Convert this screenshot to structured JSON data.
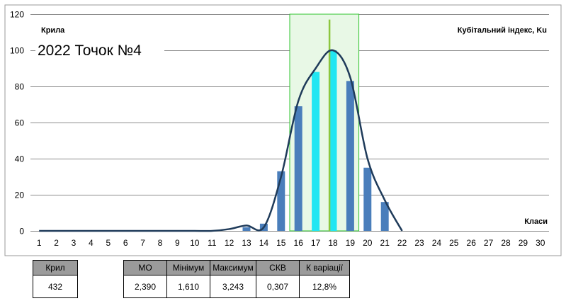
{
  "chart_data": {
    "type": "bar",
    "left_label": "Крила",
    "right_label": "Кубітальний  індекс, Ku",
    "subtitle": "2022 Точок №4",
    "xlabel": "Класи",
    "categories": [
      "1",
      "2",
      "3",
      "4",
      "5",
      "6",
      "7",
      "8",
      "9",
      "10",
      "11",
      "12",
      "13",
      "14",
      "15",
      "16",
      "17",
      "18",
      "19",
      "20",
      "21",
      "22",
      "23",
      "24",
      "25",
      "26",
      "27",
      "28",
      "29",
      "30"
    ],
    "values": [
      0,
      0,
      0,
      0,
      0,
      0,
      0,
      0,
      0,
      0,
      0,
      0,
      2,
      4,
      33,
      69,
      88,
      100,
      83,
      35,
      16,
      0,
      0,
      0,
      0,
      0,
      0,
      0,
      0,
      0
    ],
    "highlight_categories": [
      "17",
      "18"
    ],
    "curve": [
      [
        1,
        0
      ],
      [
        2,
        0
      ],
      [
        3,
        0
      ],
      [
        4,
        0
      ],
      [
        5,
        0
      ],
      [
        6,
        0
      ],
      [
        7,
        0
      ],
      [
        8,
        0
      ],
      [
        9,
        0
      ],
      [
        10,
        0
      ],
      [
        11,
        0
      ],
      [
        12,
        1
      ],
      [
        13,
        3
      ],
      [
        14,
        2
      ],
      [
        15,
        30
      ],
      [
        16,
        72
      ],
      [
        17,
        90
      ],
      [
        18,
        100
      ],
      [
        19,
        85
      ],
      [
        20,
        40
      ],
      [
        21,
        17
      ],
      [
        22,
        0
      ]
    ],
    "mean_marker": 17.8,
    "shaded_range": [
      15.5,
      19.5
    ],
    "ylim": [
      0,
      120
    ],
    "yticks": [
      0,
      20,
      40,
      60,
      80,
      100,
      120
    ],
    "grid": true,
    "colors": {
      "bar": "#4a7ebb",
      "bar_highlight": "#22e6f2",
      "curve": "#1f3b5a",
      "mean_marker": "#8cc63f",
      "shaded_fill": "#e8f8e6",
      "shaded_stroke": "#2fc42f"
    }
  },
  "tables": {
    "krill": {
      "header": "Крил",
      "value": "432"
    },
    "moments": {
      "headers": [
        "МО",
        "Мінімум",
        "Максимум",
        "СКВ",
        "К варіації"
      ],
      "values": [
        "2,390",
        "1,610",
        "3,243",
        "0,307",
        "12,8%"
      ]
    }
  }
}
